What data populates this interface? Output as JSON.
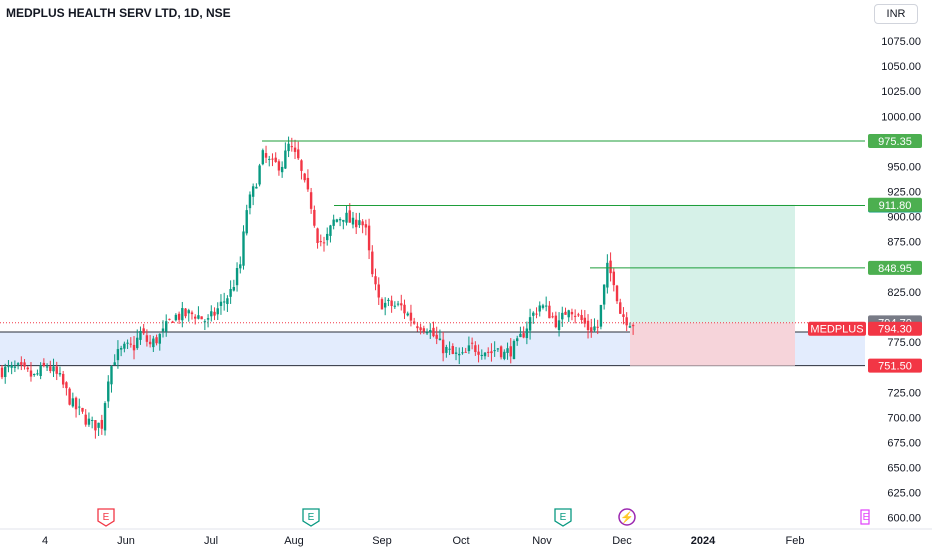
{
  "header": {
    "title": "MEDPLUS HEALTH SERV LTD, 1D, NSE",
    "currency": "INR"
  },
  "colors": {
    "up": "#089981",
    "down": "#f23645",
    "level_line": "#1e9e3a",
    "level_tag": "#4caf50",
    "zone_fill": "#e3ecfd",
    "profit_fill": "#d6f1e8",
    "loss_fill": "#f6d4da",
    "price_tag": "#f23645",
    "prev_tag": "#787b86",
    "blue_tag": "#089981",
    "dark_tag": "#f23645"
  },
  "chart_data": {
    "type": "candlestick",
    "title": "MEDPLUS HEALTH SERV LTD, 1D, NSE",
    "ylim": [
      590,
      1095
    ],
    "y_ticks": [
      "1075.00",
      "1050.00",
      "1025.00",
      "1000.00",
      "950.00",
      "925.00",
      "900.00",
      "875.00",
      "825.00",
      "775.00",
      "725.00",
      "700.00",
      "675.00",
      "650.00",
      "625.00",
      "600.00"
    ],
    "x_ticks": [
      "4",
      "Jun",
      "Jul",
      "Aug",
      "Sep",
      "Oct",
      "Nov",
      "Dec",
      "2024",
      "Feb"
    ],
    "x_tick_bold": [
      "2024"
    ],
    "path": [
      [
        0,
        747
      ],
      [
        5,
        748
      ],
      [
        10,
        740
      ],
      [
        14,
        752
      ],
      [
        18,
        738
      ],
      [
        22,
        712
      ],
      [
        25,
        702
      ],
      [
        28,
        692
      ],
      [
        31,
        693
      ],
      [
        33,
        742
      ],
      [
        35,
        760
      ],
      [
        38,
        768
      ],
      [
        41,
        771
      ],
      [
        43,
        784
      ],
      [
        46,
        772
      ],
      [
        50,
        784
      ],
      [
        53,
        800
      ],
      [
        56,
        802
      ],
      [
        60,
        803
      ],
      [
        64,
        795
      ],
      [
        68,
        812
      ],
      [
        71,
        825
      ],
      [
        74,
        852
      ],
      [
        76,
        908
      ],
      [
        78,
        925
      ],
      [
        81,
        960
      ],
      [
        84,
        951
      ],
      [
        87,
        953
      ],
      [
        89,
        970
      ],
      [
        92,
        955
      ],
      [
        94,
        930
      ],
      [
        96,
        912
      ],
      [
        98,
        880
      ],
      [
        100,
        871
      ],
      [
        103,
        895
      ],
      [
        106,
        902
      ],
      [
        109,
        892
      ],
      [
        111,
        900
      ],
      [
        113,
        884
      ],
      [
        115,
        840
      ],
      [
        117,
        815
      ],
      [
        120,
        812
      ],
      [
        124,
        810
      ],
      [
        128,
        795
      ],
      [
        132,
        790
      ],
      [
        136,
        772
      ],
      [
        140,
        762
      ],
      [
        143,
        760
      ],
      [
        146,
        770
      ],
      [
        149,
        768
      ],
      [
        152,
        765
      ],
      [
        154,
        770
      ],
      [
        156,
        763
      ],
      [
        160,
        772
      ],
      [
        164,
        798
      ],
      [
        167,
        812
      ],
      [
        170,
        804
      ],
      [
        173,
        792
      ],
      [
        176,
        812
      ],
      [
        179,
        800
      ],
      [
        182,
        789
      ],
      [
        185,
        790
      ],
      [
        188,
        848
      ],
      [
        190,
        838
      ],
      [
        192,
        805
      ],
      [
        194,
        798
      ],
      [
        196,
        794
      ]
    ],
    "levels": [
      {
        "label": "975.35",
        "value": 975.35
      },
      {
        "label": "911.05",
        "value": 911.05
      },
      {
        "label": "848.95",
        "value": 848.95
      }
    ],
    "zone": {
      "top": 785,
      "bottom": 751.5
    },
    "zone_label": "751.50",
    "position": {
      "target": 911.8,
      "target_label": "911.80",
      "entry": 794.3,
      "stop": 751.5
    },
    "price_tags": [
      {
        "label": "794.70",
        "value": 794.7,
        "kind": "prev"
      },
      {
        "label": "794.30",
        "value": 794.3,
        "kind": "last",
        "symbol": "MEDPLUS"
      }
    ],
    "events": [
      {
        "label": "E",
        "kind": "earnings-red"
      },
      {
        "label": "E",
        "kind": "earnings-green"
      },
      {
        "label": "E",
        "kind": "earnings-green"
      },
      {
        "label": "⚡",
        "kind": "split"
      }
    ],
    "event_partial": "E"
  }
}
